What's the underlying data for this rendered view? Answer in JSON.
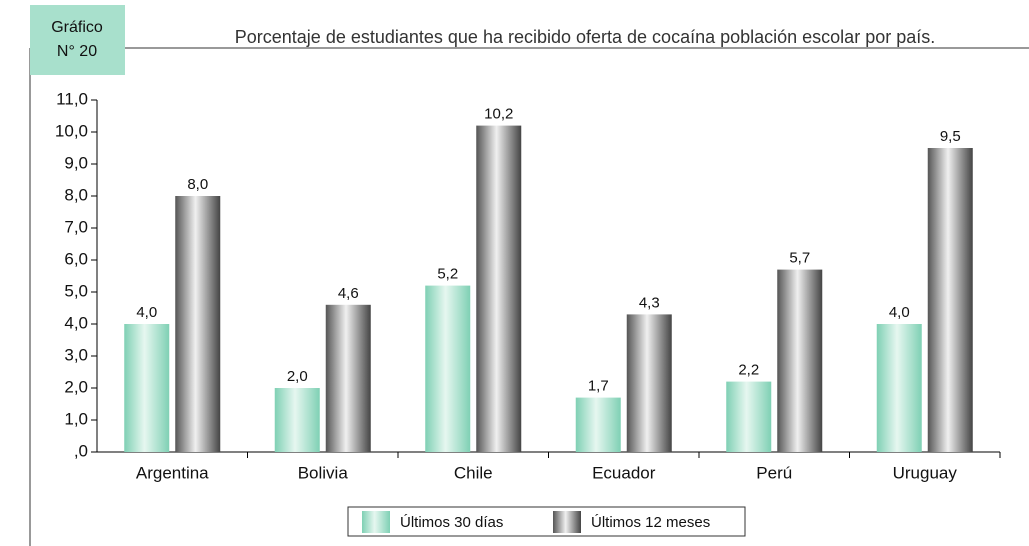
{
  "chart_data": {
    "type": "bar",
    "badge": [
      "Gráfico",
      "N° 20"
    ],
    "title": "Porcentaje de estudiantes que ha recibido oferta de cocaína población escolar por país.",
    "categories": [
      "Argentina",
      "Bolivia",
      "Chile",
      "Ecuador",
      "Perú",
      "Uruguay"
    ],
    "series": [
      {
        "name": "Últimos 30 días",
        "color": "#a8e0cc",
        "values": [
          4.0,
          2.0,
          5.2,
          1.7,
          2.2,
          4.0
        ],
        "value_labels": [
          "4,0",
          "2,0",
          "5,2",
          "1,7",
          "2,2",
          "4,0"
        ]
      },
      {
        "name": "Últimos 12 meses",
        "color": "#8c8c8c",
        "values": [
          8.0,
          4.6,
          10.2,
          4.3,
          5.7,
          9.5
        ],
        "value_labels": [
          "8,0",
          "4,6",
          "10,2",
          "4,3",
          "5,7",
          "9,5"
        ]
      }
    ],
    "ylim": [
      0,
      11
    ],
    "yticks": [
      {
        "value": 0,
        "label": ",0"
      },
      {
        "value": 1,
        "label": "1,0"
      },
      {
        "value": 2,
        "label": "2,0"
      },
      {
        "value": 3,
        "label": "3,0"
      },
      {
        "value": 4,
        "label": "4,0"
      },
      {
        "value": 5,
        "label": "5,0"
      },
      {
        "value": 6,
        "label": "6,0"
      },
      {
        "value": 7,
        "label": "7,0"
      },
      {
        "value": 8,
        "label": "8,0"
      },
      {
        "value": 9,
        "label": "9,0"
      },
      {
        "value": 10,
        "label": "10,0"
      },
      {
        "value": 11,
        "label": "11,0"
      }
    ]
  }
}
